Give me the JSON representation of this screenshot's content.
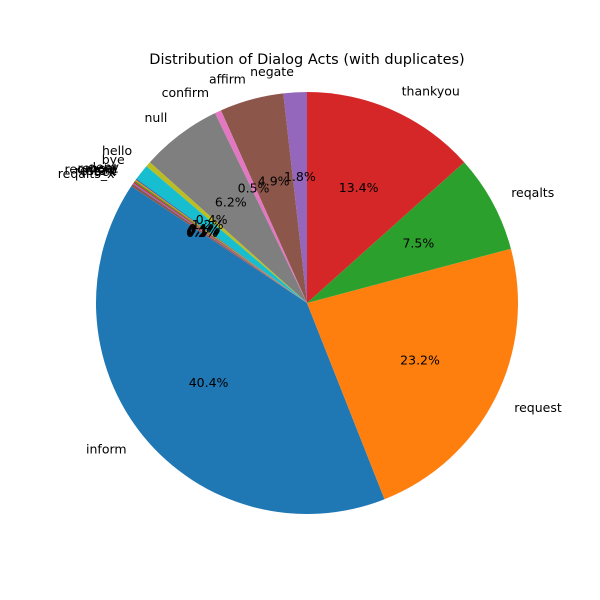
{
  "chart_data": {
    "type": "pie",
    "title": "Distribution of Dialog Acts (with duplicates)",
    "start_angle_deg": 90,
    "direction": "counterclockwise",
    "slices": [
      {
        "label": "negate",
        "value": 1.8,
        "pct_text": "1.8%",
        "color": "#9467bd"
      },
      {
        "label": "affirm",
        "value": 4.9,
        "pct_text": "4.9%",
        "color": "#8c564b"
      },
      {
        "label": "confirm",
        "value": 0.5,
        "pct_text": "0.5%",
        "color": "#e377c2"
      },
      {
        "label": "null",
        "value": 6.2,
        "pct_text": "6.2%",
        "color": "#7f7f7f"
      },
      {
        "label": "hello",
        "value": 0.4,
        "pct_text": "0.4%",
        "color": "#bcbd22"
      },
      {
        "label": "bye",
        "value": 1.2,
        "pct_text": "1.2%",
        "color": "#17becf"
      },
      {
        "label": "deny",
        "value": 0.1,
        "pct_text": "0.1%",
        "color": "#1f77b4"
      },
      {
        "label": "repeat",
        "value": 0.1,
        "pct_text": "0.1%",
        "color": "#ff7f0e"
      },
      {
        "label": "reqmore",
        "value": 0.1,
        "pct_text": "0.1%",
        "color": "#2ca02c"
      },
      {
        "label": "restart",
        "value": 0.1,
        "pct_text": "0.1%",
        "color": "#d62728"
      },
      {
        "label": "ack",
        "value": 0.1,
        "pct_text": "0.1%",
        "color": "#9467bd"
      },
      {
        "label": "reqalts_x",
        "value": 0.2,
        "pct_text": "0.2%",
        "color": "#8c564b"
      },
      {
        "label": "inform",
        "value": 40.4,
        "pct_text": "40.4%",
        "color": "#1f77b4"
      },
      {
        "label": "request",
        "value": 23.2,
        "pct_text": "23.2%",
        "color": "#ff7f0e"
      },
      {
        "label": "reqalts",
        "value": 7.5,
        "pct_text": "7.5%",
        "color": "#2ca02c"
      },
      {
        "label": "thankyou",
        "value": 13.4,
        "pct_text": "13.4%",
        "color": "#d62728"
      }
    ]
  }
}
